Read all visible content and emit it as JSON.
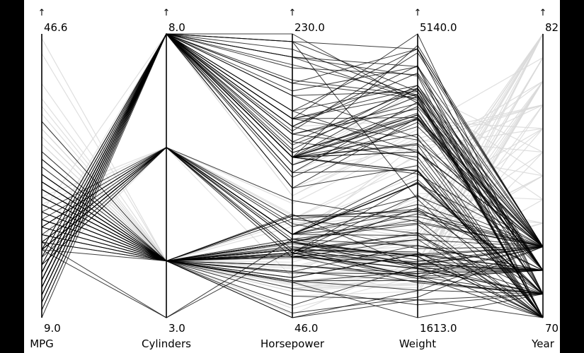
{
  "chart_data": {
    "type": "parallel-coordinates",
    "axes": [
      {
        "name": "MPG",
        "max_label": "46.6",
        "min_label": "9.0",
        "min": 9.0,
        "max": 46.6,
        "direction_icon": "up-arrow"
      },
      {
        "name": "Cylinders",
        "max_label": "8.0",
        "min_label": "3.0",
        "min": 3.0,
        "max": 8.0,
        "direction_icon": "up-arrow"
      },
      {
        "name": "Horsepower",
        "max_label": "230.0",
        "min_label": "46.0",
        "min": 46.0,
        "max": 230.0,
        "direction_icon": "up-arrow"
      },
      {
        "name": "Weight",
        "max_label": "5140.0",
        "min_label": "1613.0",
        "min": 1613.0,
        "max": 5140.0,
        "direction_icon": "up-arrow"
      },
      {
        "name": "Year",
        "max_label": "82",
        "min_label": "70",
        "min": 70,
        "max": 82,
        "direction_icon": "up-arrow"
      }
    ],
    "highlighted_color": "#000000",
    "context_color": "#d9d9d9",
    "highlight_filter": {
      "axis": "Year",
      "values": [
        70,
        71,
        72,
        73
      ]
    },
    "highlighted_records": [
      [
        18,
        8,
        130,
        3504,
        70
      ],
      [
        15,
        8,
        165,
        3693,
        70
      ],
      [
        18,
        8,
        150,
        3436,
        70
      ],
      [
        16,
        8,
        150,
        3433,
        70
      ],
      [
        17,
        8,
        140,
        3449,
        70
      ],
      [
        15,
        8,
        198,
        4341,
        70
      ],
      [
        14,
        8,
        220,
        4354,
        70
      ],
      [
        14,
        8,
        215,
        4312,
        70
      ],
      [
        14,
        8,
        225,
        4425,
        70
      ],
      [
        15,
        8,
        190,
        3850,
        70
      ],
      [
        15,
        8,
        170,
        3563,
        70
      ],
      [
        14,
        8,
        160,
        3609,
        70
      ],
      [
        15,
        8,
        150,
        3761,
        70
      ],
      [
        14,
        8,
        225,
        3086,
        70
      ],
      [
        24,
        4,
        95,
        2372,
        70
      ],
      [
        22,
        6,
        95,
        2833,
        70
      ],
      [
        18,
        6,
        97,
        2774,
        70
      ],
      [
        21,
        6,
        85,
        2587,
        70
      ],
      [
        27,
        4,
        88,
        2130,
        70
      ],
      [
        26,
        4,
        46,
        1835,
        70
      ],
      [
        25,
        4,
        87,
        2672,
        70
      ],
      [
        24,
        4,
        90,
        2430,
        70
      ],
      [
        25,
        4,
        95,
        2375,
        70
      ],
      [
        26,
        4,
        113,
        2234,
        70
      ],
      [
        21,
        6,
        90,
        2648,
        70
      ],
      [
        10,
        8,
        215,
        4615,
        70
      ],
      [
        10,
        8,
        200,
        4376,
        70
      ],
      [
        11,
        8,
        210,
        4382,
        70
      ],
      [
        9,
        8,
        193,
        4732,
        70
      ],
      [
        27,
        4,
        90,
        2264,
        71
      ],
      [
        28,
        4,
        95,
        2228,
        71
      ],
      [
        25,
        4,
        86,
        2046,
        71
      ],
      [
        19,
        6,
        100,
        2634,
        71
      ],
      [
        16,
        6,
        100,
        3439,
        71
      ],
      [
        17,
        6,
        100,
        3329,
        71
      ],
      [
        19,
        6,
        88,
        3302,
        71
      ],
      [
        18,
        6,
        100,
        3288,
        71
      ],
      [
        14,
        8,
        165,
        4209,
        71
      ],
      [
        14,
        8,
        175,
        4464,
        71
      ],
      [
        14,
        8,
        153,
        4154,
        71
      ],
      [
        14,
        8,
        150,
        4096,
        71
      ],
      [
        12,
        8,
        180,
        4955,
        71
      ],
      [
        13,
        8,
        170,
        4746,
        71
      ],
      [
        13,
        8,
        175,
        5140,
        71
      ],
      [
        18,
        6,
        110,
        2962,
        71
      ],
      [
        22,
        4,
        72,
        2408,
        71
      ],
      [
        19,
        6,
        100,
        3282,
        71
      ],
      [
        18,
        6,
        88,
        3139,
        71
      ],
      [
        23,
        4,
        86,
        2220,
        71
      ],
      [
        28,
        4,
        90,
        2123,
        71
      ],
      [
        30,
        4,
        70,
        2074,
        71
      ],
      [
        30,
        4,
        76,
        2065,
        71
      ],
      [
        31,
        4,
        65,
        1773,
        71
      ],
      [
        35,
        4,
        69,
        1613,
        71
      ],
      [
        27,
        4,
        60,
        1834,
        71
      ],
      [
        26,
        4,
        70,
        1955,
        71
      ],
      [
        24,
        4,
        95,
        2278,
        72
      ],
      [
        25,
        4,
        80,
        2126,
        72
      ],
      [
        23,
        4,
        54,
        2254,
        72
      ],
      [
        20,
        4,
        90,
        2408,
        72
      ],
      [
        21,
        4,
        86,
        2226,
        72
      ],
      [
        13,
        8,
        165,
        4274,
        72
      ],
      [
        14,
        8,
        175,
        4385,
        72
      ],
      [
        15,
        8,
        150,
        4135,
        72
      ],
      [
        14,
        8,
        153,
        4129,
        72
      ],
      [
        17,
        8,
        150,
        3672,
        72
      ],
      [
        11,
        8,
        208,
        4633,
        72
      ],
      [
        13,
        8,
        155,
        4502,
        72
      ],
      [
        12,
        8,
        160,
        4456,
        72
      ],
      [
        13,
        8,
        190,
        4422,
        72
      ],
      [
        19,
        3,
        97,
        2330,
        72
      ],
      [
        15,
        8,
        150,
        3892,
        72
      ],
      [
        13,
        8,
        130,
        4098,
        72
      ],
      [
        13,
        8,
        140,
        4294,
        72
      ],
      [
        14,
        8,
        150,
        4077,
        72
      ],
      [
        18,
        4,
        112,
        2933,
        72
      ],
      [
        22,
        4,
        76,
        2511,
        72
      ],
      [
        21,
        4,
        87,
        2979,
        72
      ],
      [
        26,
        4,
        69,
        2189,
        72
      ],
      [
        22,
        4,
        86,
        2395,
        72
      ],
      [
        28,
        4,
        92,
        2288,
        72
      ],
      [
        23,
        4,
        97,
        2506,
        72
      ],
      [
        28,
        4,
        80,
        2164,
        72
      ],
      [
        27,
        4,
        88,
        2100,
        72
      ],
      [
        13,
        8,
        175,
        4100,
        73
      ],
      [
        14,
        8,
        150,
        3672,
        73
      ],
      [
        13,
        8,
        145,
        3988,
        73
      ],
      [
        14,
        8,
        137,
        4042,
        73
      ],
      [
        15,
        8,
        150,
        3777,
        73
      ],
      [
        12,
        8,
        198,
        4952,
        73
      ],
      [
        13,
        8,
        150,
        4464,
        73
      ],
      [
        13,
        8,
        158,
        4363,
        73
      ],
      [
        14,
        8,
        150,
        4237,
        73
      ],
      [
        13,
        8,
        215,
        4735,
        73
      ],
      [
        12,
        8,
        225,
        4951,
        73
      ],
      [
        13,
        8,
        175,
        3821,
        73
      ],
      [
        18,
        6,
        105,
        3121,
        73
      ],
      [
        16,
        6,
        100,
        3278,
        73
      ],
      [
        18,
        6,
        100,
        2945,
        73
      ],
      [
        18,
        6,
        100,
        3021,
        73
      ],
      [
        23,
        6,
        95,
        2904,
        73
      ],
      [
        26,
        4,
        46,
        1950,
        73
      ],
      [
        11,
        8,
        150,
        4997,
        73
      ],
      [
        12,
        8,
        167,
        4906,
        73
      ],
      [
        13,
        8,
        170,
        4654,
        73
      ],
      [
        12,
        8,
        180,
        4499,
        73
      ],
      [
        18,
        6,
        100,
        2789,
        73
      ],
      [
        20,
        4,
        88,
        2279,
        73
      ],
      [
        21,
        4,
        72,
        2401,
        73
      ],
      [
        22,
        4,
        94,
        2379,
        73
      ],
      [
        18,
        3,
        90,
        2124,
        73
      ],
      [
        19,
        4,
        85,
        2310,
        73
      ],
      [
        21,
        6,
        107,
        2472,
        73
      ],
      [
        26,
        4,
        90,
        2265,
        73
      ],
      [
        15,
        8,
        145,
        4082,
        73
      ],
      [
        16,
        8,
        230,
        4278,
        73
      ],
      [
        29,
        4,
        49,
        1867,
        73
      ],
      [
        24,
        4,
        75,
        2158,
        73
      ],
      [
        20,
        4,
        91,
        2582,
        73
      ],
      [
        19,
        4,
        112,
        2868,
        73
      ],
      [
        15,
        8,
        150,
        3399,
        73
      ],
      [
        24,
        4,
        110,
        2660,
        73
      ],
      [
        20,
        6,
        122,
        2807,
        73
      ],
      [
        11,
        8,
        180,
        3664,
        73
      ]
    ],
    "context_records": [
      [
        20,
        6,
        100,
        3651,
        76
      ],
      [
        21,
        6,
        110,
        2600,
        77
      ],
      [
        19,
        6,
        95,
        3102,
        74
      ],
      [
        15,
        6,
        72,
        3158,
        75
      ],
      [
        31,
        4,
        67,
        1985,
        80
      ],
      [
        32,
        4,
        65,
        2020,
        80
      ],
      [
        29,
        4,
        60,
        1940,
        80
      ],
      [
        27,
        4,
        88,
        2560,
        82
      ],
      [
        44,
        4,
        52,
        2130,
        82
      ],
      [
        32,
        4,
        84,
        2295,
        82
      ],
      [
        28,
        4,
        79,
        2625,
        82
      ],
      [
        31,
        4,
        82,
        2720,
        82
      ],
      [
        36,
        4,
        88,
        2160,
        81
      ],
      [
        34,
        4,
        70,
        2188,
        81
      ],
      [
        38,
        4,
        63,
        2125,
        82
      ],
      [
        33,
        4,
        75,
        2210,
        80
      ],
      [
        17,
        6,
        110,
        3520,
        79
      ],
      [
        20,
        6,
        85,
        3070,
        78
      ],
      [
        23,
        8,
        125,
        3900,
        79
      ],
      [
        19,
        8,
        125,
        3955,
        81
      ],
      [
        16,
        8,
        150,
        4380,
        76
      ],
      [
        15,
        8,
        145,
        4440,
        77
      ],
      [
        18,
        8,
        140,
        3735,
        78
      ],
      [
        17,
        8,
        130,
        3840,
        79
      ],
      [
        26,
        4,
        93,
        2391,
        74
      ],
      [
        24,
        4,
        90,
        2202,
        75
      ],
      [
        25,
        4,
        92,
        2572,
        76
      ],
      [
        30,
        4,
        68,
        2155,
        78
      ],
      [
        22,
        6,
        112,
        2835,
        82
      ],
      [
        25,
        6,
        110,
        3620,
        80
      ],
      [
        28,
        4,
        96,
        2300,
        81
      ],
      [
        34,
        4,
        88,
        2500,
        80
      ],
      [
        40,
        4,
        48,
        2335,
        80
      ],
      [
        46,
        4,
        65,
        2110,
        80
      ],
      [
        37,
        4,
        68,
        2025,
        82
      ],
      [
        35,
        4,
        80,
        1915,
        79
      ],
      [
        24,
        4,
        97,
        2300,
        74
      ],
      [
        19,
        6,
        120,
        3820,
        77
      ],
      [
        20,
        6,
        105,
        3380,
        80
      ],
      [
        27,
        4,
        105,
        2950,
        82
      ],
      [
        26,
        4,
        95,
        2920,
        74
      ],
      [
        30,
        4,
        65,
        2190,
        79
      ],
      [
        15,
        8,
        170,
        4060,
        78
      ],
      [
        18,
        8,
        140,
        4141,
        75
      ],
      [
        22,
        4,
        108,
        2695,
        78
      ],
      [
        23,
        4,
        78,
        2592,
        76
      ],
      [
        34,
        4,
        63,
        2050,
        77
      ],
      [
        31,
        4,
        75,
        2155,
        81
      ],
      [
        20,
        4,
        95,
        2855,
        82
      ],
      [
        24,
        6,
        113,
        2464,
        76
      ],
      [
        17,
        6,
        95,
        3785,
        79
      ],
      [
        33,
        4,
        95,
        2525,
        82
      ]
    ]
  }
}
